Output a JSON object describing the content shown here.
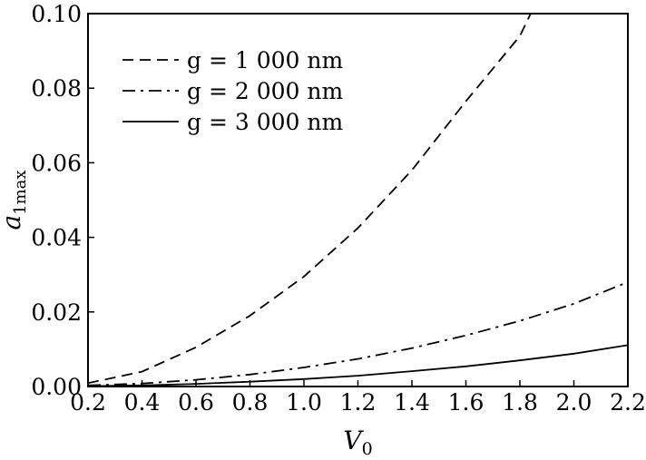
{
  "chart_data": {
    "type": "line",
    "title": "",
    "xlabel": "V",
    "xlabel_sub": "0",
    "ylabel": "a",
    "ylabel_sub": "1max",
    "xlim": [
      0.2,
      2.2
    ],
    "ylim": [
      0.0,
      0.1
    ],
    "xticks": [
      "0.2",
      "0.4",
      "0.6",
      "0.8",
      "1.0",
      "1.2",
      "1.4",
      "1.6",
      "1.8",
      "2.0",
      "2.2"
    ],
    "yticks": [
      "0.00",
      "0.02",
      "0.04",
      "0.06",
      "0.08",
      "0.10"
    ],
    "grid": false,
    "legend_position": "top-left",
    "series": [
      {
        "name": "g = 1 000 nm",
        "style": "dashed",
        "x": [
          0.2,
          0.4,
          0.6,
          0.8,
          1.0,
          1.2,
          1.4,
          1.6,
          1.8,
          1.84
        ],
        "y": [
          0.0009,
          0.004,
          0.0105,
          0.019,
          0.0295,
          0.0425,
          0.058,
          0.0765,
          0.094,
          0.1
        ]
      },
      {
        "name": "g = 2 000 nm",
        "style": "dashdot",
        "x": [
          0.2,
          0.4,
          0.6,
          0.8,
          1.0,
          1.2,
          1.4,
          1.6,
          1.8,
          2.0,
          2.2
        ],
        "y": [
          0.0003,
          0.0008,
          0.0018,
          0.0032,
          0.0051,
          0.0074,
          0.0103,
          0.0137,
          0.0176,
          0.0222,
          0.028
        ]
      },
      {
        "name": "g = 3 000 nm",
        "style": "solid",
        "x": [
          0.2,
          0.4,
          0.6,
          0.8,
          1.0,
          1.2,
          1.4,
          1.6,
          1.8,
          2.0,
          2.2
        ],
        "y": [
          0.0001,
          0.0003,
          0.0007,
          0.0013,
          0.002,
          0.0029,
          0.0041,
          0.0054,
          0.007,
          0.0088,
          0.0111
        ]
      }
    ]
  }
}
